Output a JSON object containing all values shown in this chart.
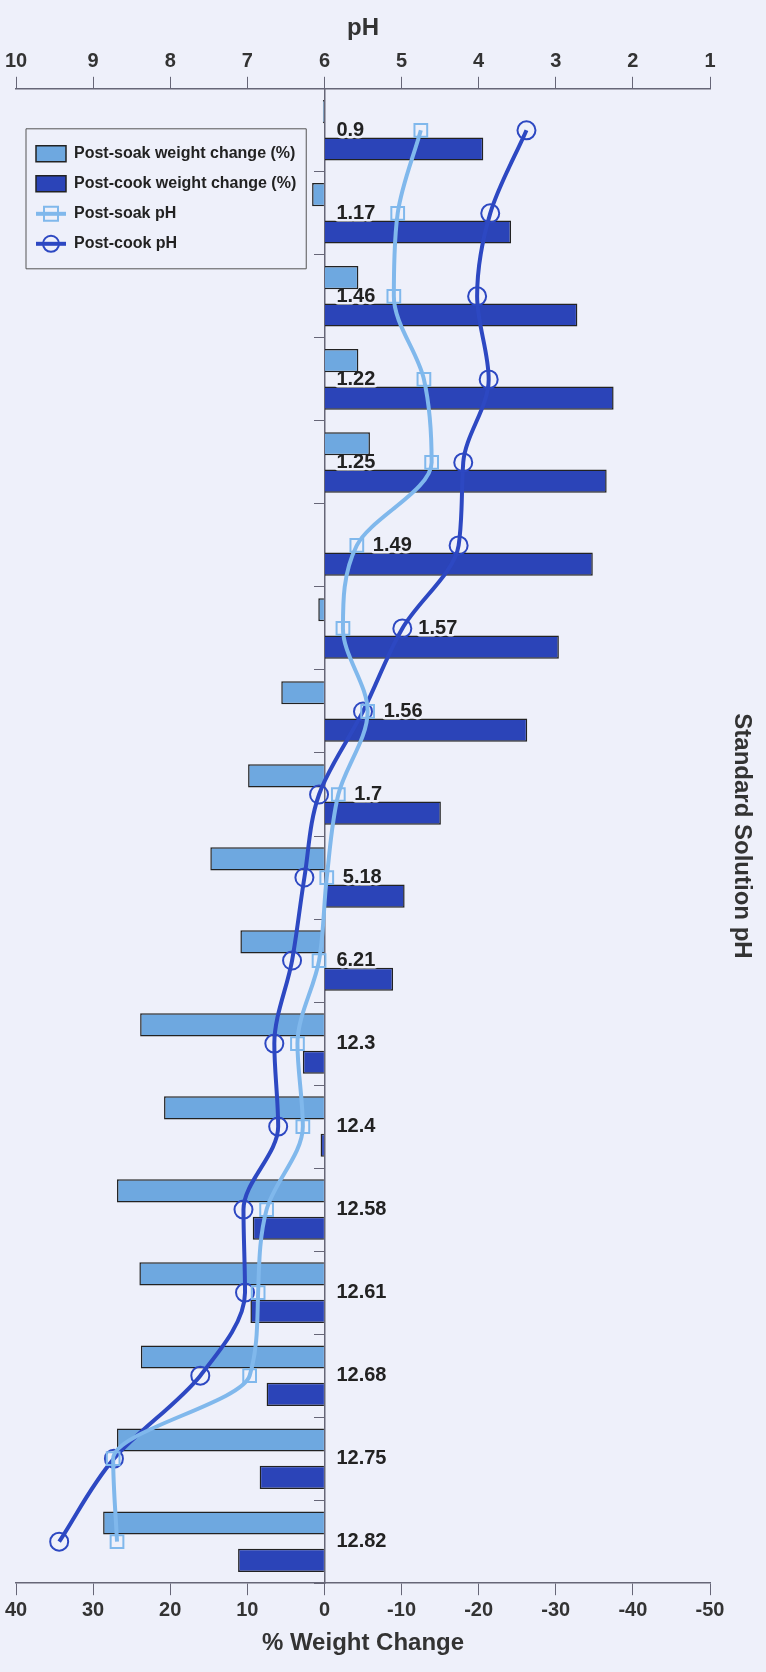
{
  "chart_data": {
    "type": "bar",
    "orientation": "horizontal",
    "xlabel": "% Weight Change",
    "x2label": "pH",
    "ylabel": "Standard Solution pH",
    "categories": [
      "0.9",
      "1.17",
      "1.46",
      "1.22",
      "1.25",
      "1.49",
      "1.57",
      "1.56",
      "1.7",
      "5.18",
      "6.21",
      "12.3",
      "12.4",
      "12.58",
      "12.61",
      "12.68",
      "12.75",
      "12.82"
    ],
    "series": [
      {
        "name": "Post-soak weight change (%)",
        "color": "#6ea8e0",
        "values": [
          0.2,
          1.6,
          -4.4,
          -4.4,
          -5.9,
          null,
          0.8,
          5.6,
          9.9,
          14.8,
          10.9,
          23.9,
          20.8,
          26.9,
          24.0,
          23.8,
          26.9,
          28.7
        ]
      },
      {
        "name": "Post-cook weight change (%)",
        "color": "#2b44b8",
        "values": [
          -20.6,
          -24.2,
          -32.8,
          -37.5,
          -36.6,
          -34.8,
          -30.4,
          -26.3,
          -15.1,
          -10.4,
          -8.9,
          2.8,
          0.5,
          9.3,
          9.6,
          7.5,
          8.4,
          11.2
        ]
      },
      {
        "name": "Post-soak pH",
        "type": "line",
        "axis": "x2",
        "marker": "square",
        "color": "#80b8ec",
        "values": [
          4.75,
          5.05,
          5.1,
          4.71,
          4.61,
          5.58,
          5.76,
          5.44,
          5.82,
          5.97,
          6.07,
          6.35,
          6.28,
          6.75,
          6.86,
          6.97,
          8.74,
          8.69
        ]
      },
      {
        "name": "Post-cook pH",
        "type": "line",
        "axis": "x2",
        "marker": "circle",
        "color": "#2d48c2",
        "values": [
          3.38,
          3.85,
          4.02,
          3.87,
          4.2,
          4.26,
          4.99,
          5.5,
          6.07,
          6.26,
          6.42,
          6.65,
          6.6,
          7.05,
          7.03,
          7.61,
          8.73,
          9.44
        ]
      }
    ],
    "xlim": [
      40,
      -50
    ],
    "xticks": [
      40,
      30,
      20,
      10,
      0,
      -10,
      -20,
      -30,
      -40,
      -50
    ],
    "x2lim": [
      10,
      1
    ],
    "x2ticks": [
      10,
      9,
      8,
      7,
      6,
      5,
      4,
      3,
      2,
      1
    ],
    "legend": "top left"
  }
}
